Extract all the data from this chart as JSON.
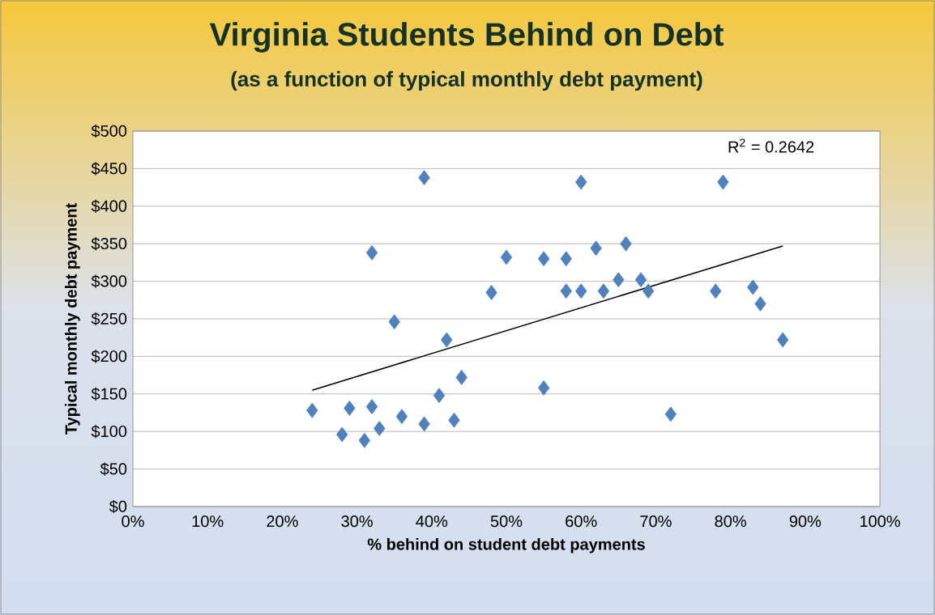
{
  "chart_data": {
    "type": "scatter",
    "title": "Virginia Students Behind on Debt",
    "subtitle": "(as a function of typical monthly debt payment)",
    "xlabel": "% behind on student debt payments",
    "ylabel": "Typical  monthly debt payment",
    "annotations": [
      "R$^{2}$ = 0.2642"
    ],
    "xlim": [
      0,
      100
    ],
    "ylim": [
      0,
      500
    ],
    "xticks": [
      {
        "value": 0,
        "label": "0%"
      },
      {
        "value": 10,
        "label": "10%"
      },
      {
        "value": 20,
        "label": "20%"
      },
      {
        "value": 30,
        "label": "30%"
      },
      {
        "value": 40,
        "label": "40%"
      },
      {
        "value": 50,
        "label": "50%"
      },
      {
        "value": 60,
        "label": "60%"
      },
      {
        "value": 70,
        "label": "70%"
      },
      {
        "value": 80,
        "label": "80%"
      },
      {
        "value": 90,
        "label": "90%"
      },
      {
        "value": 100,
        "label": "100%"
      }
    ],
    "yticks": [
      {
        "value": 0,
        "label": "$0"
      },
      {
        "value": 50,
        "label": "$50"
      },
      {
        "value": 100,
        "label": "$100"
      },
      {
        "value": 150,
        "label": "$150"
      },
      {
        "value": 200,
        "label": "$200"
      },
      {
        "value": 250,
        "label": "$250"
      },
      {
        "value": 300,
        "label": "$300"
      },
      {
        "value": 350,
        "label": "$350"
      },
      {
        "value": 400,
        "label": "$400"
      },
      {
        "value": 450,
        "label": "$450"
      },
      {
        "value": 500,
        "label": "$500"
      }
    ],
    "grid": "y",
    "marker": "diamond",
    "series": [
      {
        "color": "#4f81bd",
        "x": [
          24,
          28,
          29,
          31,
          32,
          32,
          33,
          35,
          36,
          39,
          39,
          41,
          42,
          43,
          44,
          48,
          50,
          55,
          55,
          58,
          58,
          60,
          60,
          62,
          63,
          65,
          66,
          68,
          69,
          72,
          78,
          79,
          83,
          84,
          87
        ],
        "values": [
          128,
          96,
          131,
          88,
          133,
          338,
          104,
          246,
          120,
          110,
          438,
          148,
          222,
          115,
          172,
          285,
          332,
          330,
          158,
          330,
          287,
          432,
          287,
          344,
          287,
          302,
          350,
          302,
          287,
          123,
          287,
          432,
          292,
          270,
          222
        ]
      },
      {
        "type": "line",
        "color": "#000000",
        "marker": "none",
        "x": [
          24,
          87
        ],
        "values": [
          155,
          347
        ]
      }
    ]
  }
}
